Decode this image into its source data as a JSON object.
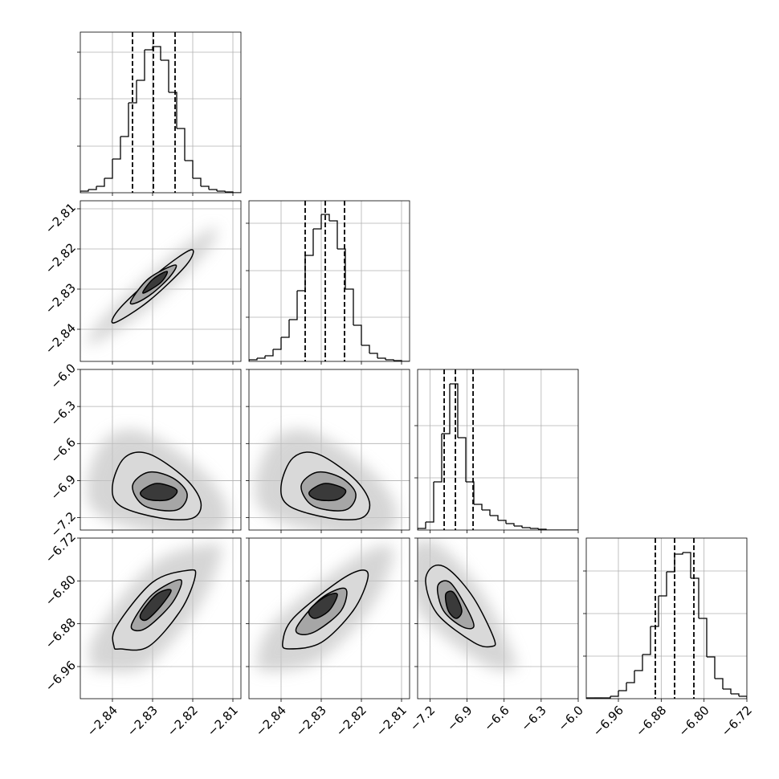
{
  "chart_data": [
    {
      "type": "histogram",
      "color": "#000000",
      "grid": true,
      "bins": [
        -2.848,
        -2.846,
        -2.844,
        -2.842,
        -2.84,
        -2.838,
        -2.836,
        -2.834,
        -2.832,
        -2.83,
        -2.828,
        -2.826,
        -2.824,
        -2.822,
        -2.82,
        -2.818,
        -2.816,
        -2.814,
        -2.812,
        -2.81,
        -2.808
      ],
      "values": [
        2,
        4,
        8,
        18,
        42,
        70,
        112,
        140,
        178,
        182,
        165,
        125,
        80,
        40,
        18,
        8,
        4,
        2,
        1,
        0
      ],
      "quantiles": [
        -2.835,
        -2.8298,
        -2.8244
      ],
      "xlim": [
        -2.848,
        -2.808
      ],
      "xticks": [
        -2.84,
        -2.83,
        -2.82,
        -2.81
      ],
      "ylim": [
        0,
        200
      ],
      "yticks": [
        58,
        117,
        175
      ]
    },
    {
      "type": "contour",
      "color": "#000000",
      "fill_colors": [
        "#d9d9d9",
        "#a6a6a6",
        "#3a3a3a"
      ],
      "grid": true,
      "contours": [
        {
          "x": [
            -2.8396,
            -2.838,
            -2.828,
            -2.8204,
            -2.8216,
            -2.831
          ],
          "y": [
            -2.8384,
            -2.8346,
            -2.8254,
            -2.8202,
            -2.824,
            -2.833
          ]
        },
        {
          "x": [
            -2.8354,
            -2.831,
            -2.8244,
            -2.8256,
            -2.83,
            -2.834
          ],
          "y": [
            -2.833,
            -2.8274,
            -2.824,
            -2.8268,
            -2.831,
            -2.8334
          ]
        },
        {
          "x": [
            -2.8324,
            -2.83,
            -2.8264,
            -2.828
          ],
          "y": [
            -2.831,
            -2.8276,
            -2.8256,
            -2.8284
          ]
        }
      ],
      "xlim": [
        -2.848,
        -2.808
      ],
      "xticks": [
        -2.84,
        -2.83,
        -2.82,
        -2.81
      ],
      "ylim": [
        -2.848,
        -2.808
      ],
      "yticks": [
        {
          "value": -2.84,
          "label": "−2.84"
        },
        {
          "value": -2.83,
          "label": "−2.83"
        },
        {
          "value": -2.82,
          "label": "−2.82"
        },
        {
          "value": -2.81,
          "label": "−2.81"
        }
      ]
    },
    {
      "type": "histogram",
      "color": "#000000",
      "grid": true,
      "bins": [
        -2.848,
        -2.846,
        -2.844,
        -2.842,
        -2.84,
        -2.838,
        -2.836,
        -2.834,
        -2.832,
        -2.83,
        -2.828,
        -2.826,
        -2.824,
        -2.822,
        -2.82,
        -2.818,
        -2.816,
        -2.814,
        -2.812,
        -2.81,
        -2.808
      ],
      "values": [
        2,
        4,
        7,
        15,
        30,
        52,
        88,
        132,
        165,
        183,
        175,
        140,
        90,
        45,
        20,
        10,
        4,
        2,
        1,
        0
      ],
      "quantiles": [
        -2.834,
        -2.829,
        -2.8242
      ],
      "xlim": [
        -2.848,
        -2.808
      ],
      "xticks": [
        -2.84,
        -2.83,
        -2.82,
        -2.81
      ],
      "ylim": [
        0,
        200
      ],
      "yticks": [
        55,
        113,
        172
      ]
    },
    {
      "type": "contour",
      "color": "#000000",
      "fill_colors": [
        "#d9d9d9",
        "#a6a6a6",
        "#3a3a3a"
      ],
      "grid": true,
      "contours": [
        {
          "x": [
            -2.84,
            -2.837,
            -2.831,
            -2.822,
            -2.818,
            -2.82,
            -2.828,
            -2.838
          ],
          "y": [
            -6.943,
            -6.715,
            -6.683,
            -6.878,
            -7.073,
            -7.203,
            -7.203,
            -7.105
          ]
        },
        {
          "x": [
            -2.835,
            -2.831,
            -2.825,
            -2.8214,
            -2.824,
            -2.832
          ],
          "y": [
            -6.943,
            -6.832,
            -6.878,
            -7.008,
            -7.138,
            -7.105
          ]
        },
        {
          "x": [
            -2.833,
            -2.829,
            -2.824,
            -2.826,
            -2.831
          ],
          "y": [
            -6.995,
            -6.923,
            -6.975,
            -7.053,
            -7.053
          ]
        }
      ],
      "xlim": [
        -2.848,
        -2.808
      ],
      "xticks": [
        -2.84,
        -2.83,
        -2.82,
        -2.81
      ],
      "ylim": [
        -7.3,
        -6.0
      ],
      "yticks": [
        {
          "value": -7.2,
          "label": "−7.2"
        },
        {
          "value": -6.9,
          "label": "−6.9"
        },
        {
          "value": -6.6,
          "label": "−6.6"
        },
        {
          "value": -6.3,
          "label": "−6.3"
        },
        {
          "value": -6.0,
          "label": "−6.0"
        }
      ]
    },
    {
      "type": "contour",
      "color": "#000000",
      "fill_colors": [
        "#d9d9d9",
        "#a6a6a6",
        "#3a3a3a"
      ],
      "grid": true,
      "contours": [
        {
          "x": [
            -2.84,
            -2.837,
            -2.831,
            -2.822,
            -2.818,
            -2.82,
            -2.828,
            -2.838
          ],
          "y": [
            -6.943,
            -6.715,
            -6.683,
            -6.878,
            -7.073,
            -7.203,
            -7.203,
            -7.105
          ]
        },
        {
          "x": [
            -2.835,
            -2.831,
            -2.825,
            -2.8214,
            -2.824,
            -2.832
          ],
          "y": [
            -6.943,
            -6.832,
            -6.878,
            -7.008,
            -7.138,
            -7.105
          ]
        },
        {
          "x": [
            -2.833,
            -2.829,
            -2.824,
            -2.826,
            -2.831
          ],
          "y": [
            -6.995,
            -6.923,
            -6.975,
            -7.053,
            -7.053
          ]
        }
      ],
      "xlim": [
        -2.848,
        -2.808
      ],
      "xticks": [
        -2.84,
        -2.83,
        -2.82,
        -2.81
      ],
      "ylim": [
        -7.3,
        -6.0
      ],
      "yticks": [
        -7.2,
        -6.9,
        -6.6,
        -6.3,
        -6.0
      ]
    },
    {
      "type": "histogram",
      "color": "#000000",
      "grid": true,
      "bins": [
        -7.3,
        -7.235,
        -7.17,
        -7.105,
        -7.04,
        -6.975,
        -6.91,
        -6.845,
        -6.78,
        -6.715,
        -6.65,
        -6.585,
        -6.52,
        -6.455,
        -6.39,
        -6.325,
        -6.26,
        -6.195,
        -6.13,
        -6.065,
        -6.0
      ],
      "values": [
        2,
        10,
        60,
        120,
        182,
        115,
        60,
        32,
        25,
        18,
        12,
        8,
        5,
        3,
        2,
        1,
        0,
        0,
        0,
        0
      ],
      "quantiles": [
        -7.085,
        -6.994,
        -6.851
      ],
      "xlim": [
        -7.3,
        -6.0
      ],
      "xticks": [
        -7.2,
        -6.9,
        -6.6,
        -6.3,
        -6.0
      ],
      "ylim": [
        0,
        200
      ],
      "yticks": [
        65,
        130
      ]
    },
    {
      "type": "contour",
      "color": "#000000",
      "fill_colors": [
        "#d9d9d9",
        "#a6a6a6",
        "#3a3a3a"
      ],
      "grid": true,
      "contours": [
        {
          "x": [
            -2.8396,
            -2.839,
            -2.83,
            -2.821,
            -2.8194,
            -2.823,
            -2.831,
            -2.838
          ],
          "y": [
            -6.9225,
            -6.885,
            -6.8025,
            -6.78,
            -6.792,
            -6.855,
            -6.9225,
            -6.927
          ]
        },
        {
          "x": [
            -2.835,
            -2.83,
            -2.823,
            -2.825,
            -2.831,
            -2.8344
          ],
          "y": [
            -6.8775,
            -6.825,
            -6.798,
            -6.84,
            -6.885,
            -6.8925
          ]
        },
        {
          "x": [
            -2.833,
            -2.829,
            -2.8254,
            -2.828,
            -2.8316
          ],
          "y": [
            -6.8625,
            -6.825,
            -6.8175,
            -6.8475,
            -6.873
          ]
        }
      ],
      "xlim": [
        -2.848,
        -2.808
      ],
      "xticks": [
        {
          "value": -2.84,
          "label": "−2.84"
        },
        {
          "value": -2.83,
          "label": "−2.83"
        },
        {
          "value": -2.82,
          "label": "−2.82"
        },
        {
          "value": -2.81,
          "label": "−2.81"
        }
      ],
      "ylim": [
        -7.02,
        -6.72
      ],
      "yticks": [
        {
          "value": -6.96,
          "label": "−6.96"
        },
        {
          "value": -6.88,
          "label": "−6.88"
        },
        {
          "value": -6.8,
          "label": "−6.80"
        },
        {
          "value": -6.72,
          "label": "−6.72"
        }
      ]
    },
    {
      "type": "contour",
      "color": "#000000",
      "fill_colors": [
        "#d9d9d9",
        "#a6a6a6",
        "#3a3a3a"
      ],
      "grid": true,
      "contours": [
        {
          "x": [
            -2.8396,
            -2.837,
            -2.826,
            -2.82,
            -2.8184,
            -2.822,
            -2.83,
            -2.838
          ],
          "y": [
            -6.915,
            -6.87,
            -6.8025,
            -6.78,
            -6.795,
            -6.855,
            -6.915,
            -6.927
          ]
        },
        {
          "x": [
            -2.836,
            -2.83,
            -2.824,
            -2.825,
            -2.831,
            -2.835
          ],
          "y": [
            -6.885,
            -6.8325,
            -6.8145,
            -6.855,
            -6.8925,
            -6.9
          ]
        },
        {
          "x": [
            -2.833,
            -2.829,
            -2.826,
            -2.828,
            -2.8316
          ],
          "y": [
            -6.855,
            -6.8295,
            -6.825,
            -6.855,
            -6.87
          ]
        }
      ],
      "xlim": [
        -2.848,
        -2.808
      ],
      "xticks": [
        {
          "value": -2.84,
          "label": "−2.84"
        },
        {
          "value": -2.83,
          "label": "−2.83"
        },
        {
          "value": -2.82,
          "label": "−2.82"
        },
        {
          "value": -2.81,
          "label": "−2.81"
        }
      ],
      "ylim": [
        -7.02,
        -6.72
      ],
      "yticks": [
        -6.96,
        -6.88,
        -6.8,
        -6.72
      ]
    },
    {
      "type": "contour",
      "color": "#000000",
      "fill_colors": [
        "#d9d9d9",
        "#a6a6a6",
        "#3a3a3a"
      ],
      "grid": true,
      "contours": [
        {
          "x": [
            -7.235,
            -7.17,
            -7.04,
            -6.845,
            -6.6825,
            -6.702,
            -6.845,
            -7.1375
          ],
          "y": [
            -6.8025,
            -6.7725,
            -6.78,
            -6.8325,
            -6.9075,
            -6.9225,
            -6.915,
            -6.8625
          ]
        },
        {
          "x": [
            -7.1375,
            -7.04,
            -6.91,
            -6.845,
            -6.9425,
            -7.092
          ],
          "y": [
            -6.81,
            -6.8025,
            -6.8475,
            -6.885,
            -6.885,
            -6.855
          ]
        },
        {
          "x": [
            -7.0725,
            -7.0075,
            -6.9425,
            -6.988,
            -7.053
          ],
          "y": [
            -6.825,
            -6.822,
            -6.855,
            -6.87,
            -6.855
          ]
        }
      ],
      "xlim": [
        -7.3,
        -6.0
      ],
      "xticks": [
        {
          "value": -7.2,
          "label": "−7.2"
        },
        {
          "value": -6.9,
          "label": "−6.9"
        },
        {
          "value": -6.6,
          "label": "−6.6"
        },
        {
          "value": -6.3,
          "label": "−6.3"
        },
        {
          "value": -6.0,
          "label": "−6.0"
        }
      ],
      "ylim": [
        -7.02,
        -6.72
      ],
      "yticks": [
        -6.96,
        -6.88,
        -6.8,
        -6.72
      ]
    },
    {
      "type": "histogram",
      "color": "#000000",
      "grid": true,
      "bins": [
        -7.02,
        -7.005,
        -6.99,
        -6.975,
        -6.96,
        -6.945,
        -6.93,
        -6.915,
        -6.9,
        -6.885,
        -6.87,
        -6.855,
        -6.84,
        -6.825,
        -6.81,
        -6.795,
        -6.78,
        -6.765,
        -6.75,
        -6.735,
        -6.72
      ],
      "values": [
        1,
        1,
        1,
        3,
        10,
        20,
        35,
        55,
        90,
        128,
        158,
        180,
        182,
        150,
        100,
        52,
        25,
        12,
        6,
        3
      ],
      "quantiles": [
        -6.891,
        -6.855,
        -6.819
      ],
      "xlim": [
        -7.02,
        -6.72
      ],
      "xticks": [
        {
          "value": -6.96,
          "label": "−6.96"
        },
        {
          "value": -6.88,
          "label": "−6.88"
        },
        {
          "value": -6.8,
          "label": "−6.80"
        },
        {
          "value": -6.72,
          "label": "−6.72"
        }
      ],
      "ylim": [
        0,
        200
      ],
      "yticks": [
        53,
        106,
        159
      ]
    }
  ]
}
